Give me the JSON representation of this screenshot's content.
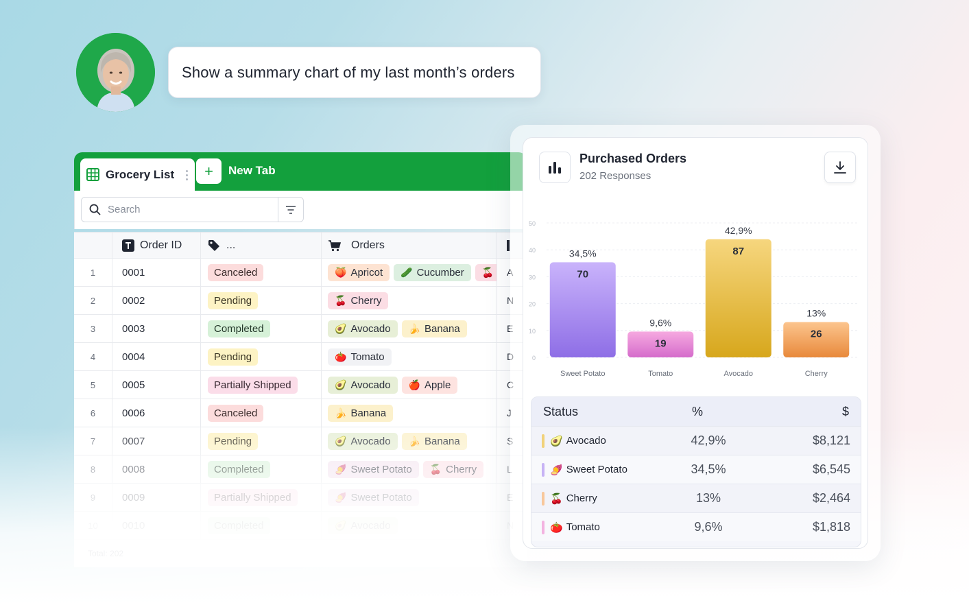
{
  "prompt": "Show a summary chart of my last month’s orders",
  "sheet": {
    "tab_title": "Grocery List",
    "new_tab_label": "New Tab",
    "search_placeholder": "Search",
    "headers": {
      "order_id": "Order ID",
      "status": "...",
      "orders": "Orders"
    },
    "rows": [
      {
        "num": "1",
        "id": "0001",
        "status": "Canceled",
        "status_class": "st-canceled",
        "orders": [
          {
            "name": "Apricot",
            "icon": "🍑",
            "cls": "ch-apricot"
          },
          {
            "name": "Cucumber",
            "icon": "🥒",
            "cls": "ch-cucumber"
          },
          {
            "name": "",
            "icon": "🍒",
            "cls": "ch-cherry"
          }
        ],
        "extra": "A"
      },
      {
        "num": "2",
        "id": "0002",
        "status": "Pending",
        "status_class": "st-pending",
        "orders": [
          {
            "name": "Cherry",
            "icon": "🍒",
            "cls": "ch-cherry"
          }
        ],
        "extra": "N"
      },
      {
        "num": "3",
        "id": "0003",
        "status": "Completed",
        "status_class": "st-completed",
        "orders": [
          {
            "name": "Avocado",
            "icon": "🥑",
            "cls": "ch-avocado"
          },
          {
            "name": "Banana",
            "icon": "🍌",
            "cls": "ch-banana"
          }
        ],
        "extra": "E"
      },
      {
        "num": "4",
        "id": "0004",
        "status": "Pending",
        "status_class": "st-pending",
        "orders": [
          {
            "name": "Tomato",
            "icon": "🍅",
            "cls": "ch-tomato"
          }
        ],
        "extra": "D"
      },
      {
        "num": "5",
        "id": "0005",
        "status": "Partially Shipped",
        "status_class": "st-partial",
        "orders": [
          {
            "name": "Avocado",
            "icon": "🥑",
            "cls": "ch-avocado"
          },
          {
            "name": "Apple",
            "icon": "🍎",
            "cls": "ch-apple"
          }
        ],
        "extra": "C"
      },
      {
        "num": "6",
        "id": "0006",
        "status": "Canceled",
        "status_class": "st-canceled",
        "orders": [
          {
            "name": "Banana",
            "icon": "🍌",
            "cls": "ch-banana"
          }
        ],
        "extra": "J"
      },
      {
        "num": "7",
        "id": "0007",
        "status": "Pending",
        "status_class": "st-pending",
        "orders": [
          {
            "name": "Avocado",
            "icon": "🥑",
            "cls": "ch-avocado"
          },
          {
            "name": "Banana",
            "icon": "🍌",
            "cls": "ch-banana"
          }
        ],
        "extra": "S"
      },
      {
        "num": "8",
        "id": "0008",
        "status": "Completed",
        "status_class": "st-completed",
        "orders": [
          {
            "name": "Sweet Potato",
            "icon": "🍠",
            "cls": "ch-sweet"
          },
          {
            "name": "Cherry",
            "icon": "🍒",
            "cls": "ch-cherry"
          }
        ],
        "extra": "L"
      },
      {
        "num": "9",
        "id": "0009",
        "status": "Partially Shipped",
        "status_class": "st-partial",
        "orders": [
          {
            "name": "Sweet Potato",
            "icon": "🍠",
            "cls": "ch-sweet"
          }
        ],
        "extra": "E"
      },
      {
        "num": "10",
        "id": "0010",
        "status": "Completed",
        "status_class": "st-completed",
        "orders": [
          {
            "name": "Avocado",
            "icon": "🥑",
            "cls": "ch-avocado"
          }
        ],
        "extra": "N"
      }
    ],
    "footer": "Total: 202"
  },
  "card": {
    "title": "Purchased Orders",
    "subtitle": "202 Responses"
  },
  "chart_data": {
    "type": "bar",
    "categories": [
      "Sweet Potato",
      "Tomato",
      "Avocado",
      "Cherry"
    ],
    "values": [
      70,
      19,
      87,
      26
    ],
    "percent_labels": [
      "34,5%",
      "9,6%",
      "42,9%",
      "13%"
    ],
    "y_ticks": [
      "0",
      "10",
      "20",
      "30",
      "40",
      "50"
    ],
    "ylim": [
      0,
      100
    ],
    "colors": [
      [
        "#c9b3fb",
        "#8e6ee6"
      ],
      [
        "#f6a9e0",
        "#d56ccb"
      ],
      [
        "#f6d67e",
        "#d7a71c"
      ],
      [
        "#fcc58e",
        "#e8893b"
      ]
    ]
  },
  "summary": {
    "headers": {
      "status": "Status",
      "pct": "%",
      "amount": "$"
    },
    "rows": [
      {
        "name": "Avocado",
        "icon": "🥑",
        "pct": "42,9%",
        "amount": "$8,121",
        "color": "#f1d27a"
      },
      {
        "name": "Sweet Potato",
        "icon": "🍠",
        "pct": "34,5%",
        "amount": "$6,545",
        "color": "#c7b3f5"
      },
      {
        "name": "Cherry",
        "icon": "🍒",
        "pct": "13%",
        "amount": "$2,464",
        "color": "#f8c79b"
      },
      {
        "name": "Tomato",
        "icon": "🍅",
        "pct": "9,6%",
        "amount": "$1,818",
        "color": "#f3b3e0"
      }
    ]
  }
}
